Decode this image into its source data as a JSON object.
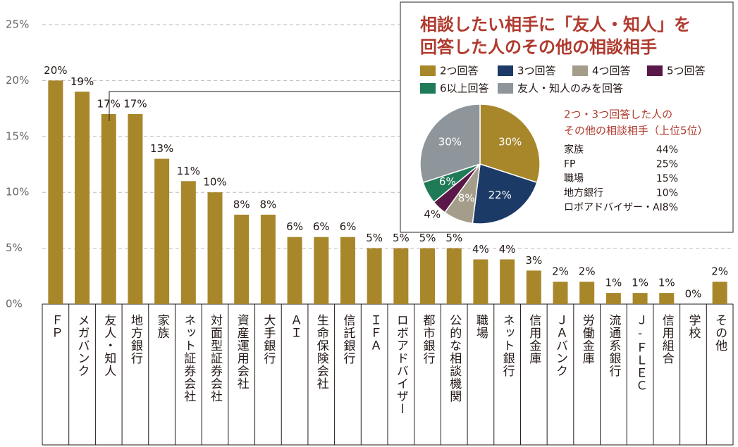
{
  "chart_data": [
    {
      "type": "bar",
      "categories": [
        "ＦＰ",
        "メガバンク",
        "友人・知人",
        "地方銀行",
        "家族",
        "ネット証券会社",
        "対面型証券会社",
        "資産運用会社",
        "大手銀行",
        "ＡＩ",
        "生命保険会社",
        "信託銀行",
        "ＩＦＡ",
        "ロボアドバイザー",
        "都市銀行",
        "公的な相談機関",
        "職場",
        "ネット銀行",
        "信用金庫",
        "ＪＡバンク",
        "労働金庫",
        "流通系銀行",
        "Ｊ-ＦＬＥＣ",
        "信用組合",
        "学校",
        "その他"
      ],
      "values": [
        20,
        19,
        17,
        17,
        13,
        11,
        10,
        8,
        8,
        6,
        6,
        6,
        5,
        5,
        5,
        5,
        4,
        4,
        3,
        2,
        2,
        1,
        1,
        1,
        0,
        2
      ],
      "value_labels": [
        "20%",
        "19%",
        "17%",
        "17%",
        "13%",
        "11%",
        "10%",
        "8%",
        "8%",
        "6%",
        "6%",
        "6%",
        "5%",
        "5%",
        "5%",
        "5%",
        "4%",
        "4%",
        "3%",
        "2%",
        "2%",
        "1%",
        "1%",
        "1%",
        "0%",
        "2%"
      ],
      "color": "#a8862a",
      "ylim": [
        0,
        25
      ],
      "yticks": [
        {
          "value": 0,
          "label": "0%"
        },
        {
          "value": 5,
          "label": "5%"
        },
        {
          "value": 10,
          "label": "10%"
        },
        {
          "value": 15,
          "label": "15%"
        },
        {
          "value": 20,
          "label": "20%"
        },
        {
          "value": 25,
          "label": "25%"
        }
      ],
      "grid": true
    },
    {
      "type": "pie",
      "title": [
        "相談したい相手に「友人・知人」を",
        "回答した人のその他の相談相手"
      ],
      "categories": [
        "2つ回答",
        "3つ回答",
        "4つ回答",
        "5つ回答",
        "6以上回答",
        "友人・知人のみを回答"
      ],
      "values": [
        30,
        22,
        8,
        4,
        6,
        30
      ],
      "value_labels": [
        "30%",
        "22%",
        "8%",
        "4%",
        "6%",
        "30%"
      ],
      "colors": [
        "#a8862a",
        "#1b3a66",
        "#a39d8a",
        "#5a1848",
        "#1f7a58",
        "#8f969b"
      ]
    }
  ],
  "ranking": {
    "title": [
      "2つ・3つ回答した人の",
      "その他の相談相手（上位5位）"
    ],
    "rows": [
      [
        "家族",
        "44%"
      ],
      [
        "FP",
        "25%"
      ],
      [
        "職場",
        "15%"
      ],
      [
        "地方銀行",
        "10%"
      ],
      [
        "ロボアドバイザー・AI",
        "8%"
      ]
    ]
  }
}
